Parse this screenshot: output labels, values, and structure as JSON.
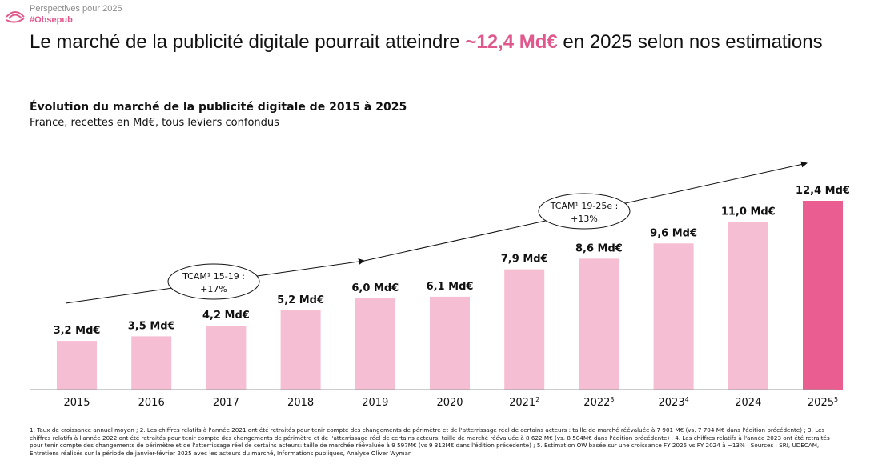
{
  "header": {
    "kicker": "Perspectives pour 2025",
    "tag": "#Obsepub",
    "headline_pre": "Le marché de la publicité digitale pourrait atteindre ",
    "headline_highlight": "~12,4 Md€",
    "headline_post": " en 2025 selon nos estimations"
  },
  "colors": {
    "bar": "#f6bed2",
    "bar_highlight": "#e95d91",
    "accent": "#e0588c"
  },
  "chart_data": {
    "type": "bar",
    "title": "Évolution du marché de la publicité digitale de 2015 à 2025",
    "subtitle": "France, recettes en Md€, tous leviers confondus",
    "categories": [
      {
        "label": "2015",
        "sup": ""
      },
      {
        "label": "2016",
        "sup": ""
      },
      {
        "label": "2017",
        "sup": ""
      },
      {
        "label": "2018",
        "sup": ""
      },
      {
        "label": "2019",
        "sup": ""
      },
      {
        "label": "2020",
        "sup": ""
      },
      {
        "label": "2021",
        "sup": "2"
      },
      {
        "label": "2022",
        "sup": "3"
      },
      {
        "label": "2023",
        "sup": "4"
      },
      {
        "label": "2024",
        "sup": ""
      },
      {
        "label": "2025",
        "sup": "5"
      }
    ],
    "values": [
      3.2,
      3.5,
      4.2,
      5.2,
      6.0,
      6.1,
      7.9,
      8.6,
      9.6,
      11.0,
      12.4
    ],
    "value_labels": [
      "3,2 Md€",
      "3,5 Md€",
      "4,2 Md€",
      "5,2 Md€",
      "6,0 Md€",
      "6,1 Md€",
      "7,9 Md€",
      "8,6 Md€",
      "9,6 Md€",
      "11,0 Md€",
      "12,4 Md€"
    ],
    "highlight_index": 10,
    "ylim": [
      0,
      12.4
    ],
    "annotations": [
      {
        "line1": "TCAM¹ 15-19 :",
        "line2": "+17%"
      },
      {
        "line1": "TCAM¹ 19-25e :",
        "line2": "+13%"
      }
    ]
  },
  "footnote": "1. Taux de croissance annuel moyen ; 2. Les chiffres relatifs à l'année 2021 ont été retraités pour tenir compte des changements de périmètre et de l'atterrissage réel de certains acteurs : taille de marché réévaluée à 7 901 M€ (vs. 7 704 M€ dans l'édition précédente) ; 3. Les chiffres relatifs à l'année 2022 ont été retraités pour tenir compte des changements de périmètre et de l'atterrissage réel de certains acteurs: taille de marché réévaluée à 8 622 M€ (vs. 8 504M€ dans l'édition précédente) ; 4. Les chiffres relatifs à l'année 2023 ont été retraités pour tenir compte des changements de périmètre et de l'atterrissage réel de certains acteurs: taille de marchée réévaluée à 9 597M€ (vs 9 312M€ dans l'édition précédente) ; 5. Estimation OW basée sur une croissance FY 2025 vs FY 2024 à ~13% | Sources : SRI, UDECAM, Entretiens réalisés sur la période de janvier-février 2025 avec les acteurs du marché, Informations publiques, Analyse Oliver Wyman"
}
